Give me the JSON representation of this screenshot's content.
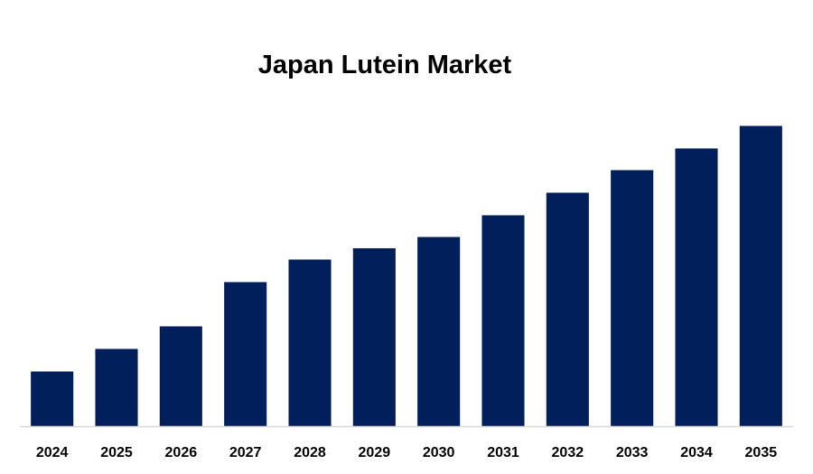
{
  "chart_data": {
    "type": "bar",
    "title": "Japan Lutein Market",
    "xlabel": "",
    "ylabel": "",
    "categories": [
      "2024",
      "2025",
      "2026",
      "2027",
      "2028",
      "2029",
      "2030",
      "2031",
      "2032",
      "2033",
      "2034",
      "2035"
    ],
    "values": [
      63,
      89,
      115,
      166,
      192,
      205,
      218,
      243,
      269,
      295,
      320,
      346
    ],
    "ylim": [
      0,
      360
    ],
    "grid": false,
    "legend": "none",
    "colors": {
      "bar": "#001F5B",
      "axis": "#D9D9D9",
      "text": "#000000"
    }
  }
}
